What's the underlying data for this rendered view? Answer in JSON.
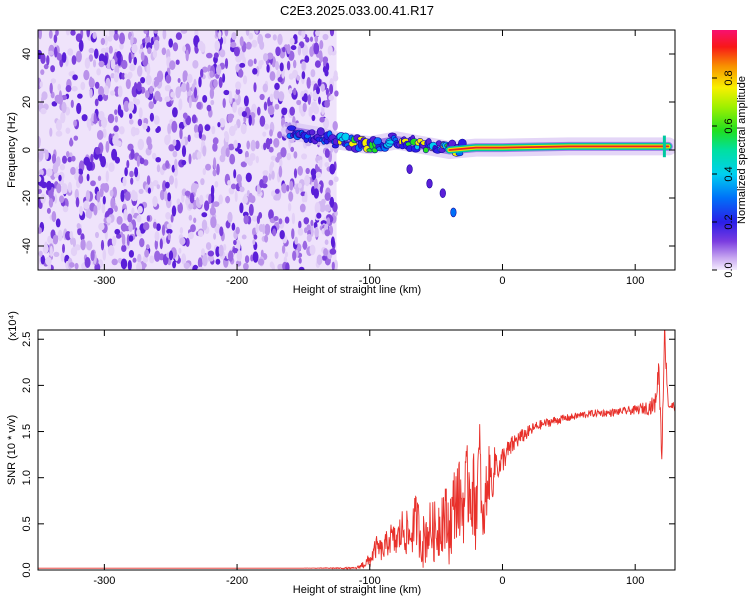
{
  "title": "C2E3.2025.033.00.41.R17",
  "colors": {
    "spectrogram_dot": "#5a1ed8",
    "snr_line": "#e8302a",
    "frame": "#000000"
  },
  "chart_data": [
    {
      "type": "heatmap",
      "xlabel": "Height of straight line (km)",
      "ylabel": "Frequency (Hz)",
      "xlim": [
        -350,
        130
      ],
      "ylim": [
        -50,
        50
      ],
      "x_ticks": [
        -300,
        -200,
        -100,
        0,
        100
      ],
      "y_ticks": [
        -40,
        -20,
        0,
        20,
        40
      ],
      "colorbar": {
        "label": "Normalized spectral amplitude",
        "range": [
          0,
          1
        ],
        "ticks": [
          0.0,
          0.2,
          0.4,
          0.6,
          0.8
        ],
        "tick_labels": [
          "0.0",
          "0.2",
          "0.4",
          "0.6",
          "0.8"
        ],
        "colormap": "rainbow-with-lavender-low"
      },
      "noise_region": {
        "x_range": [
          -350,
          -125
        ],
        "y_range": [
          -50,
          50
        ],
        "amplitude": "low (0.0-0.2)"
      },
      "signal_track": [
        {
          "x": -160,
          "y": 8
        },
        {
          "x": -140,
          "y": 6
        },
        {
          "x": -125,
          "y": 4
        },
        {
          "x": -100,
          "y": 2
        },
        {
          "x": -80,
          "y": 4
        },
        {
          "x": -60,
          "y": 2
        },
        {
          "x": -40,
          "y": 0
        },
        {
          "x": -20,
          "y": 1
        },
        {
          "x": 0,
          "y": 1
        },
        {
          "x": 50,
          "y": 1.5
        },
        {
          "x": 100,
          "y": 1.5
        },
        {
          "x": 125,
          "y": 1.5
        }
      ],
      "branch_track": [
        {
          "x": -70,
          "y": -8
        },
        {
          "x": -55,
          "y": -14
        },
        {
          "x": -45,
          "y": -18
        },
        {
          "x": -37,
          "y": -26
        }
      ]
    },
    {
      "type": "line",
      "xlabel": "Height of straight line (km)",
      "ylabel": "SNR (10 * v/v)",
      "y_multiplier": "(x10⁴)",
      "xlim": [
        -350,
        130
      ],
      "ylim": [
        0,
        2.6
      ],
      "x_ticks": [
        -300,
        -200,
        -100,
        0,
        100
      ],
      "y_ticks": [
        0.0,
        0.5,
        1.0,
        1.5,
        2.0,
        2.5
      ],
      "y_tick_labels": [
        "0.0",
        "0.5",
        "1.0",
        "1.5",
        "2.0",
        "2.5"
      ],
      "series": [
        {
          "x": [
            -350,
            -300,
            -250,
            -200,
            -150,
            -110,
            -100,
            -95,
            -90,
            -85,
            -80,
            -75,
            -70,
            -65,
            -60,
            -55,
            -50,
            -45,
            -40,
            -35,
            -30,
            -25,
            -20,
            -17,
            -15,
            -12,
            -10,
            -8,
            -5,
            -2,
            0,
            5,
            10,
            15,
            20,
            25,
            30,
            35,
            40,
            50,
            60,
            70,
            80,
            90,
            100,
            105,
            110,
            115,
            118,
            120,
            122,
            125,
            130
          ],
          "y": [
            0.02,
            0.02,
            0.02,
            0.02,
            0.02,
            0.02,
            0.1,
            0.25,
            0.2,
            0.35,
            0.3,
            0.45,
            0.35,
            0.55,
            0.3,
            0.45,
            0.4,
            0.6,
            0.45,
            0.8,
            0.7,
            0.95,
            0.7,
            1.3,
            0.35,
            0.9,
            1.05,
            0.95,
            1.2,
            1.1,
            1.2,
            1.3,
            1.4,
            1.45,
            1.5,
            1.55,
            1.58,
            1.6,
            1.62,
            1.65,
            1.68,
            1.7,
            1.7,
            1.72,
            1.73,
            1.75,
            1.76,
            1.8,
            2.2,
            1.2,
            2.6,
            1.78,
            1.77
          ],
          "noise_amplitude": [
            0,
            0,
            0,
            0,
            0,
            0.01,
            0.08,
            0.12,
            0.12,
            0.18,
            0.18,
            0.25,
            0.25,
            0.3,
            0.3,
            0.3,
            0.35,
            0.4,
            0.4,
            0.45,
            0.45,
            0.5,
            0.5,
            0.35,
            0.3,
            0.35,
            0.3,
            0.25,
            0.2,
            0.15,
            0.15,
            0.12,
            0.1,
            0.08,
            0.07,
            0.06,
            0.05,
            0.05,
            0.05,
            0.04,
            0.04,
            0.04,
            0.04,
            0.04,
            0.05,
            0.06,
            0.08,
            0.1,
            0.15,
            0.15,
            0.15,
            0.05,
            0.05
          ]
        }
      ]
    }
  ]
}
